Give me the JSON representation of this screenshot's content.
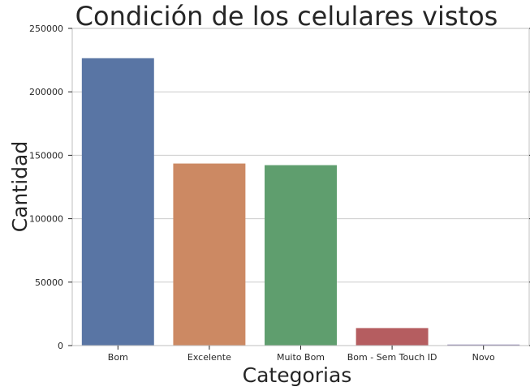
{
  "chart_data": {
    "type": "bar",
    "title": "Condición de los celulares vistos",
    "xlabel": "Categorias",
    "ylabel": "Cantidad",
    "categories": [
      "Bom",
      "Excelente",
      "Muito Bom",
      "Bom - Sem Touch ID",
      "Novo"
    ],
    "values": [
      226500,
      143500,
      142200,
      13800,
      800
    ],
    "colors": [
      "#5975a4",
      "#cc8963",
      "#5f9e6e",
      "#b55d60",
      "#857aab"
    ],
    "ylim": [
      0,
      250000
    ],
    "yticks": [
      "0",
      "50000",
      "100000",
      "150000",
      "200000",
      "250000"
    ],
    "grid": true,
    "legend": "none"
  }
}
